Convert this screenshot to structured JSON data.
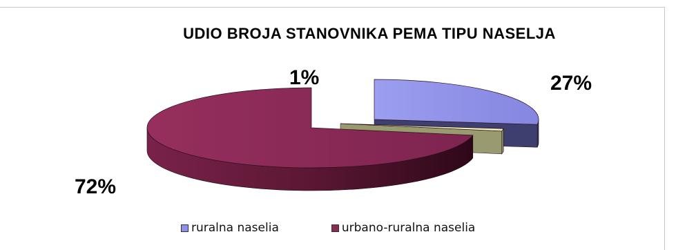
{
  "chart_data": {
    "type": "pie",
    "title": "UDIO BROJA STANOVNIKA PEMA TIPU NASELJA",
    "slices": [
      {
        "name": "ruralna naselia",
        "value": 27,
        "label": "27%",
        "color": "#8e90ea",
        "side_color": "#3e3f6e"
      },
      {
        "name": "",
        "value": 1,
        "label": "1%",
        "color": "#eeeebb",
        "side_color": "#9a9a70"
      },
      {
        "name": "urbano-ruralna naselia",
        "value": 72,
        "label": "72%",
        "color": "#8b2a55",
        "side_color": "#4a1228"
      }
    ],
    "legend": [
      {
        "name": "ruralna naselia",
        "color": "#8e90ea"
      },
      {
        "name": "urbano-ruralna naselia",
        "color": "#8b2a55"
      }
    ],
    "legend_position": "bottom",
    "style": "3d-exploded"
  }
}
